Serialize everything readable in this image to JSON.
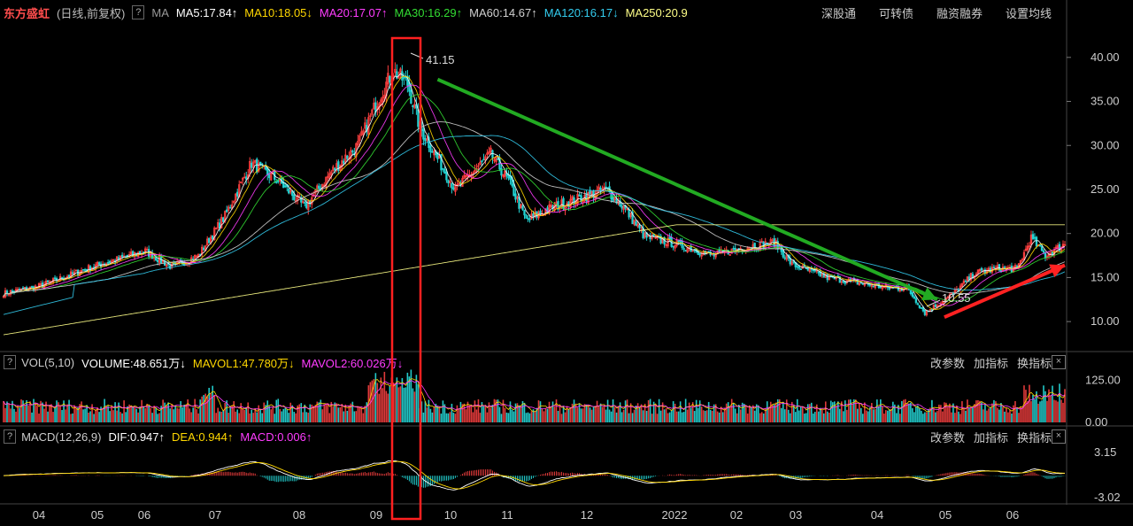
{
  "header": {
    "stock_name": "东方盛虹",
    "mode": "(日线,前复权)",
    "help": "?",
    "ma_label": "MA",
    "ma_items": [
      {
        "text": "MA5:17.84↑",
        "color": "#ffffff"
      },
      {
        "text": "MA10:18.05↓",
        "color": "#ffd700"
      },
      {
        "text": "MA20:17.07↑",
        "color": "#ff3cff"
      },
      {
        "text": "MA30:16.29↑",
        "color": "#33dd33"
      },
      {
        "text": "MA60:14.67↑",
        "color": "#d0d0d0"
      },
      {
        "text": "MA120:16.17↓",
        "color": "#33ccee"
      },
      {
        "text": "MA250:20.9",
        "color": "#ffff88"
      }
    ],
    "links": [
      "深股通",
      "可转债",
      "融资融券",
      "设置均线"
    ]
  },
  "volume_panel": {
    "help": "?",
    "label": "VOL(5,10)",
    "items": [
      {
        "text": "VOLUME:48.651万↓",
        "color": "#ffffff"
      },
      {
        "text": "MAVOL1:47.780万↓",
        "color": "#ffd700"
      },
      {
        "text": "MAVOL2:60.026万↓",
        "color": "#ff3cff"
      }
    ],
    "links": [
      "改参数",
      "加指标",
      "换指标"
    ],
    "close": "×"
  },
  "macd_panel": {
    "help": "?",
    "label": "MACD(12,26,9)",
    "items": [
      {
        "text": "DIF:0.947↑",
        "color": "#ffffff"
      },
      {
        "text": "DEA:0.944↑",
        "color": "#ffd700"
      },
      {
        "text": "MACD:0.006↑",
        "color": "#ff3cff"
      }
    ],
    "links": [
      "改参数",
      "加指标",
      "换指标"
    ],
    "close": "×"
  },
  "chart_data": {
    "type": "candlestick",
    "price_axis": {
      "ticks": [
        "40.00",
        "35.00",
        "30.00",
        "25.00",
        "20.00",
        "15.00",
        "10.00"
      ],
      "range": [
        7.5,
        43.5
      ]
    },
    "volume_axis": {
      "ticks": [
        "125.00",
        "0.00"
      ],
      "range": [
        0,
        150
      ]
    },
    "macd_axis": {
      "ticks": [
        "3.15",
        "-3.02"
      ],
      "range": [
        -3.6,
        3.9
      ]
    },
    "x_ticks": [
      "04",
      "05",
      "06",
      "07",
      "08",
      "09",
      "10",
      "11",
      "12",
      "2022",
      "02",
      "03",
      "04",
      "05",
      "06"
    ],
    "annotations": {
      "high": "41.15",
      "low": "10.55"
    },
    "close_anchors": [
      [
        0,
        13.2
      ],
      [
        20,
        14.0
      ],
      [
        50,
        16.2
      ],
      [
        80,
        18.0
      ],
      [
        95,
        16.2
      ],
      [
        110,
        17.5
      ],
      [
        125,
        22.0
      ],
      [
        140,
        28.0
      ],
      [
        155,
        26.0
      ],
      [
        170,
        23.0
      ],
      [
        185,
        27.0
      ],
      [
        200,
        30.0
      ],
      [
        212,
        35.5
      ],
      [
        220,
        38.5
      ],
      [
        228,
        37.0
      ],
      [
        235,
        32.0
      ],
      [
        245,
        28.5
      ],
      [
        255,
        25.0
      ],
      [
        265,
        27.0
      ],
      [
        275,
        29.0
      ],
      [
        285,
        26.0
      ],
      [
        295,
        21.5
      ],
      [
        310,
        23.0
      ],
      [
        325,
        24.0
      ],
      [
        340,
        25.0
      ],
      [
        350,
        23.0
      ],
      [
        362,
        19.6
      ],
      [
        380,
        18.8
      ],
      [
        400,
        17.5
      ],
      [
        420,
        18.5
      ],
      [
        435,
        19.0
      ],
      [
        445,
        16.5
      ],
      [
        465,
        15.0
      ],
      [
        480,
        14.5
      ],
      [
        500,
        13.8
      ],
      [
        510,
        13.8
      ],
      [
        520,
        11.0
      ],
      [
        535,
        13.0
      ],
      [
        548,
        15.5
      ],
      [
        560,
        16.0
      ],
      [
        572,
        16.0
      ],
      [
        580,
        19.5
      ],
      [
        588,
        17.5
      ],
      [
        599,
        18.8
      ]
    ],
    "moving_averages": [
      {
        "period": 5,
        "color": "#ffffff"
      },
      {
        "period": 10,
        "color": "#ffd700"
      },
      {
        "period": 20,
        "color": "#ff3cff"
      },
      {
        "period": 30,
        "color": "#33dd33"
      },
      {
        "period": 60,
        "color": "#d0d0d0"
      },
      {
        "period": 120,
        "color": "#33ccee"
      },
      {
        "period": 250,
        "color": "#ffff88"
      }
    ],
    "trend_arrows": [
      {
        "color": "#22aa22",
        "from": [
          245,
          37.5
        ],
        "to": [
          527,
          12.5
        ]
      },
      {
        "color": "#ff2222",
        "from": [
          531,
          10.5
        ],
        "to": [
          599,
          16.4
        ]
      }
    ]
  }
}
